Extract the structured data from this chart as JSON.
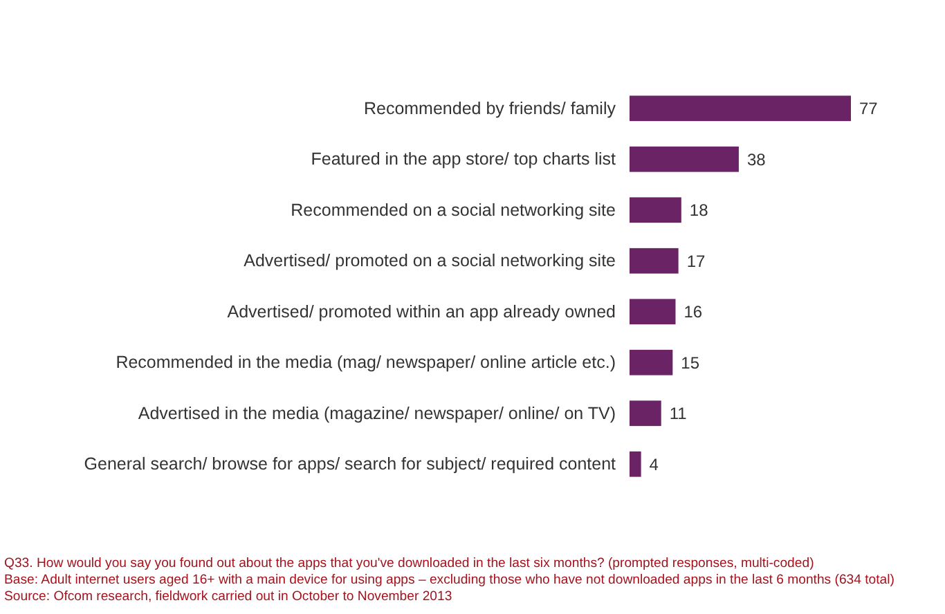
{
  "chart_data": {
    "type": "bar",
    "orientation": "horizontal",
    "categories": [
      "Recommended by friends/ family",
      "Featured in the app store/ top charts list",
      "Recommended on a social networking site",
      "Advertised/ promoted on a social networking site",
      "Advertised/ promoted within an app already owned",
      "Recommended in the media (mag/ newspaper/ online article etc.)",
      "Advertised in the media (magazine/ newspaper/ online/ on TV)",
      "General search/ browse for apps/ search for subject/ required content"
    ],
    "values": [
      77,
      38,
      18,
      17,
      16,
      15,
      11,
      4
    ],
    "color": "#6a2466",
    "data_labels": true,
    "annotations": [
      "Q33. How would you say you found out about the apps that you've downloaded in the last six months? (prompted responses, multi-coded)",
      "Base: Adult internet users aged 16+ with a main device for using apps – excluding those who have not downloaded apps in the last 6 months (634 total)",
      "Source: Ofcom research, fieldwork carried out in October to November 2013"
    ]
  }
}
